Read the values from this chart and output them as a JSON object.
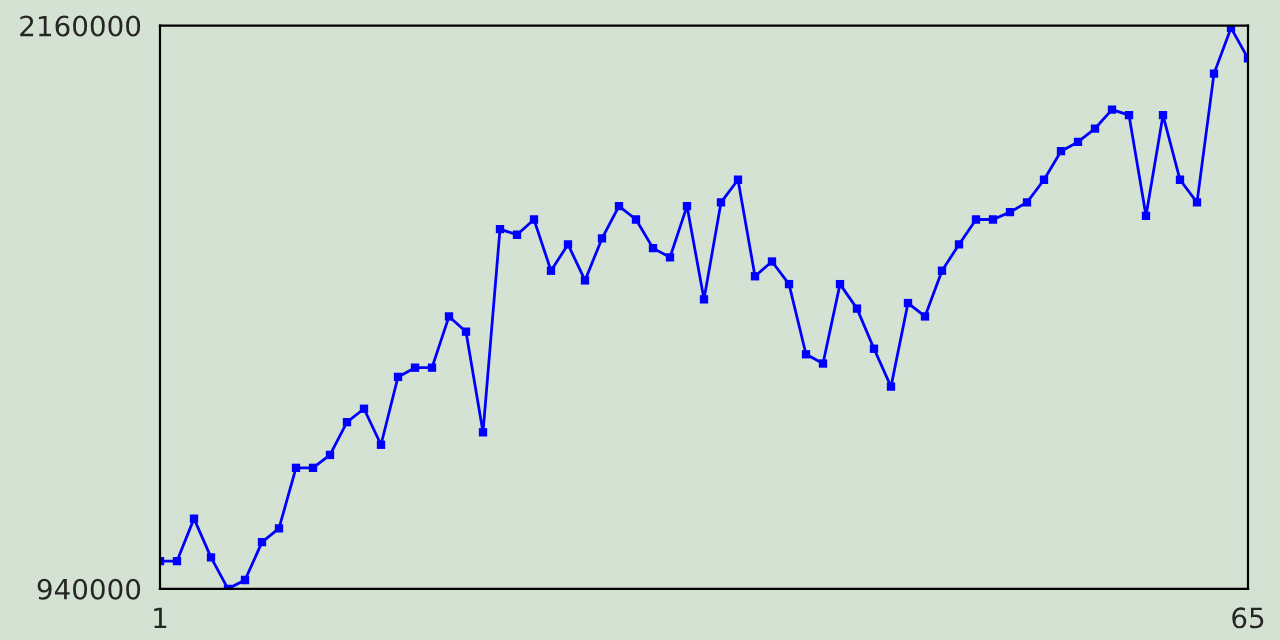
{
  "chart_data": {
    "type": "line",
    "marker": "square",
    "grid": false,
    "x": [
      1,
      2,
      3,
      4,
      5,
      6,
      7,
      8,
      9,
      10,
      11,
      12,
      13,
      14,
      15,
      16,
      17,
      18,
      19,
      20,
      21,
      22,
      23,
      24,
      25,
      26,
      27,
      28,
      29,
      30,
      31,
      32,
      33,
      34,
      35,
      36,
      37,
      38,
      39,
      40,
      41,
      42,
      43,
      44,
      45,
      46,
      47,
      48,
      49,
      50,
      51,
      52,
      53,
      54,
      55,
      56,
      57,
      58,
      59,
      60,
      61,
      62,
      63,
      64,
      65
    ],
    "series": [
      {
        "color": "#0000ff",
        "values": [
          1000000,
          1000000,
          1092000,
          1008000,
          940000,
          959000,
          1041000,
          1071000,
          1202000,
          1202000,
          1230000,
          1301000,
          1330000,
          1252000,
          1399000,
          1419000,
          1419000,
          1530000,
          1497000,
          1279000,
          1719000,
          1707000,
          1740000,
          1629000,
          1686000,
          1608000,
          1699000,
          1769000,
          1740000,
          1678000,
          1658000,
          1769000,
          1567000,
          1777000,
          1826000,
          1617000,
          1649000,
          1600000,
          1448000,
          1428000,
          1600000,
          1547000,
          1460000,
          1378000,
          1559000,
          1530000,
          1629000,
          1686000,
          1740000,
          1740000,
          1756000,
          1777000,
          1826000,
          1888000,
          1908000,
          1937000,
          1978000,
          1966000,
          1748000,
          1966000,
          1826000,
          1777000,
          2056000,
          2155000,
          2089000
        ]
      }
    ],
    "xlim": [
      1,
      65
    ],
    "xticks": [
      1,
      65
    ],
    "ylim": [
      940000,
      2160000
    ],
    "yticks": [
      940000,
      2160000
    ]
  }
}
